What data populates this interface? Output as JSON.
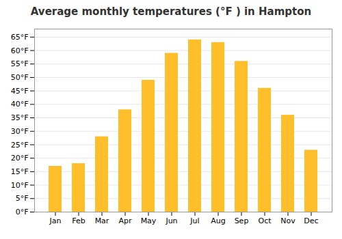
{
  "chart_data": {
    "type": "bar",
    "title": "Average monthly temperatures (°F ) in Hampton",
    "categories": [
      "Jan",
      "Feb",
      "Mar",
      "Apr",
      "May",
      "Jun",
      "Jul",
      "Aug",
      "Sep",
      "Oct",
      "Nov",
      "Dec"
    ],
    "values": [
      17,
      18,
      28,
      38,
      49,
      59,
      64,
      63,
      56,
      46,
      36,
      23
    ],
    "color": "#FFBF2B",
    "ylim": [
      0,
      68
    ],
    "yticks": [
      {
        "value": 0,
        "label": "0°F"
      },
      {
        "value": 5,
        "label": "5°F"
      },
      {
        "value": 10,
        "label": "10°F"
      },
      {
        "value": 15,
        "label": "15°F"
      },
      {
        "value": 20,
        "label": "20°F"
      },
      {
        "value": 25,
        "label": "25°F"
      },
      {
        "value": 30,
        "label": "30°F"
      },
      {
        "value": 35,
        "label": "35°F"
      },
      {
        "value": 40,
        "label": "40°F"
      },
      {
        "value": 45,
        "label": "45°F"
      },
      {
        "value": 50,
        "label": "50°F"
      },
      {
        "value": 55,
        "label": "55°F"
      },
      {
        "value": 60,
        "label": "60°F"
      },
      {
        "value": 65,
        "label": "65°F"
      }
    ],
    "grid": true
  }
}
